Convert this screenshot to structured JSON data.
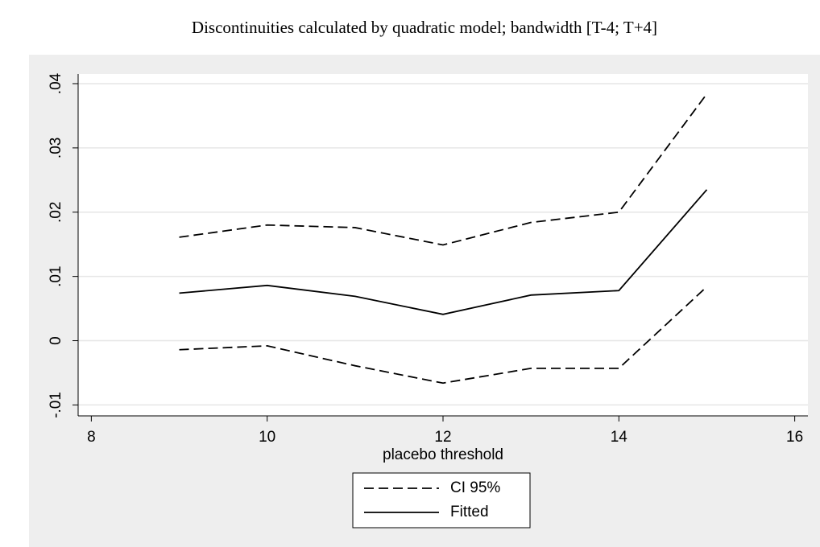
{
  "chart_data": {
    "type": "line",
    "title": "Discontinuities calculated by quadratic model; bandwidth [T-4; T+4]",
    "x_label": "placebo threshold",
    "x": [
      9,
      10,
      11,
      12,
      13,
      14,
      15
    ],
    "series": [
      {
        "name": "CI 95%",
        "color": "#000000",
        "dashed": true,
        "upper": [
          0.0161,
          0.018,
          0.0176,
          0.0149,
          0.0184,
          0.02,
          0.0384
        ],
        "lower": [
          -0.0014,
          -0.0008,
          -0.0039,
          -0.0066,
          -0.0043,
          -0.0043,
          0.0084
        ]
      },
      {
        "name": "Fitted",
        "color": "#000000",
        "dashed": false,
        "values": [
          0.0074,
          0.0086,
          0.0069,
          0.0041,
          0.0071,
          0.0078,
          0.0235
        ]
      }
    ],
    "xlim": [
      7.85,
      16.15
    ],
    "xticks": [
      8,
      10,
      12,
      14,
      16
    ],
    "ylim": [
      -0.0117,
      0.0415
    ],
    "yticks": [
      {
        "value": -0.01,
        "label": "-.01"
      },
      0,
      {
        "value": 0.01,
        "label": ".01"
      },
      {
        "value": 0.02,
        "label": ".02"
      },
      {
        "value": 0.03,
        "label": ".03"
      },
      {
        "value": 0.04,
        "label": ".04"
      }
    ],
    "grid": true,
    "legend": "bottom"
  }
}
